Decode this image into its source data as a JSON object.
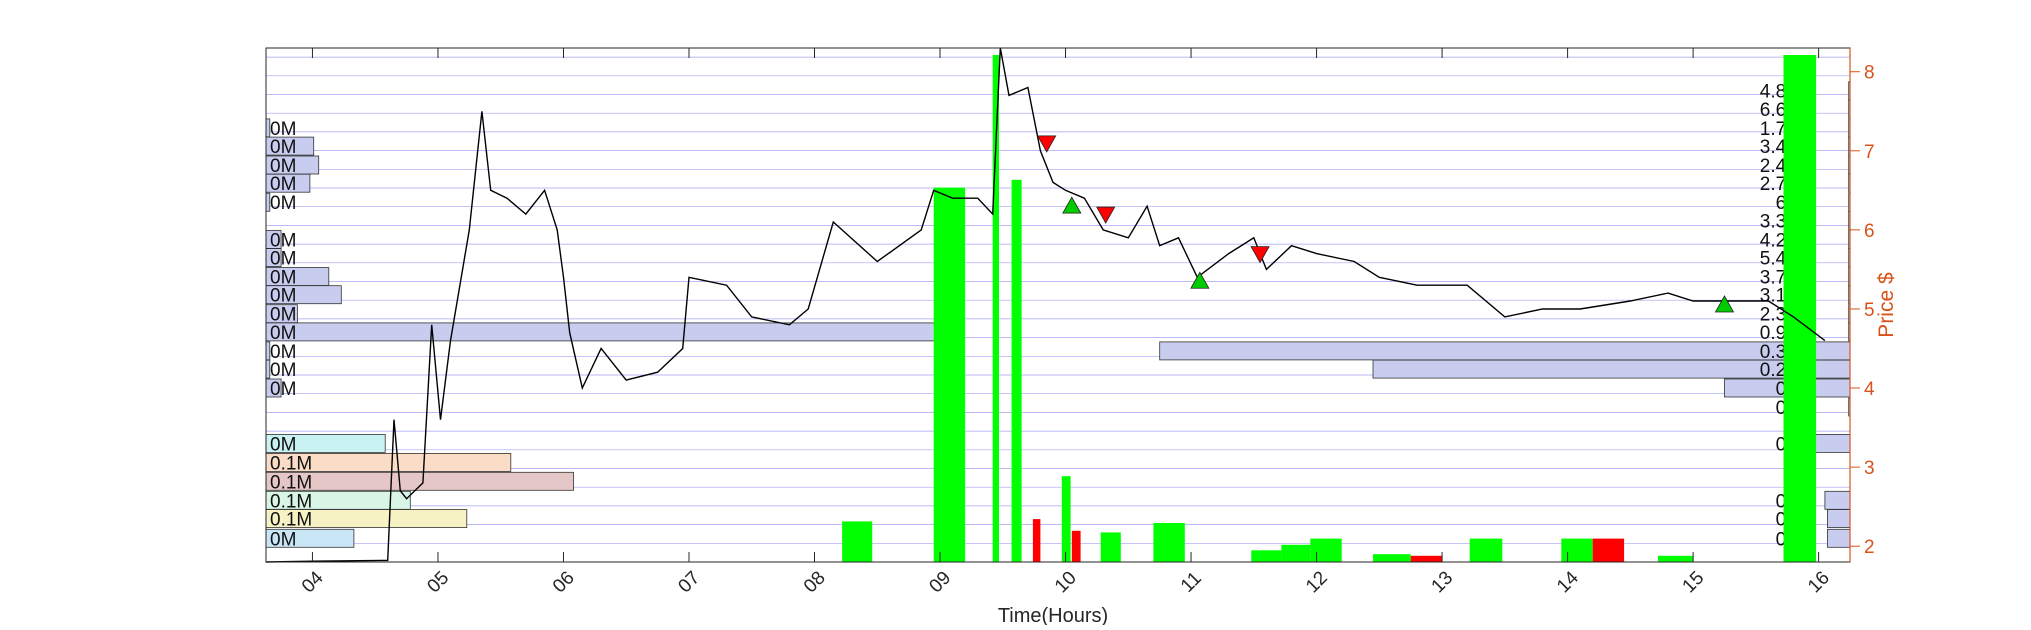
{
  "chart_data": {
    "type": "line",
    "xlabel": "Time(Hours)",
    "ylabel": "Price $",
    "x_ticks": [
      "04",
      "05",
      "06",
      "07",
      "08",
      "09",
      "10",
      "11",
      "12",
      "13",
      "14",
      "15",
      "16"
    ],
    "xlim": [
      3.63,
      16.25
    ],
    "y_ticks": [
      "2",
      "3",
      "4",
      "5",
      "6",
      "7",
      "8"
    ],
    "ylim": [
      1.8,
      8.3
    ],
    "grid": "horizontal",
    "colors": {
      "axis_right": "#d95319",
      "price_line": "#000000",
      "grid": "#8c8cf0",
      "volume_up": "#00ff00",
      "volume_down": "#ff0000",
      "buy_marker": "#00cc00",
      "sell_marker": "#ff0000",
      "profile_fill": "#c8cdf0"
    },
    "price_series": {
      "name": "Price",
      "points": [
        [
          3.63,
          1.8
        ],
        [
          4.0,
          1.81
        ],
        [
          4.6,
          1.82
        ],
        [
          4.65,
          3.6
        ],
        [
          4.7,
          2.7
        ],
        [
          4.75,
          2.6
        ],
        [
          4.88,
          2.8
        ],
        [
          4.95,
          4.8
        ],
        [
          5.02,
          3.6
        ],
        [
          5.1,
          4.6
        ],
        [
          5.25,
          6.0
        ],
        [
          5.35,
          7.5
        ],
        [
          5.42,
          6.5
        ],
        [
          5.55,
          6.4
        ],
        [
          5.7,
          6.2
        ],
        [
          5.85,
          6.5
        ],
        [
          5.95,
          6.0
        ],
        [
          6.0,
          5.4
        ],
        [
          6.05,
          4.7
        ],
        [
          6.15,
          4.0
        ],
        [
          6.3,
          4.5
        ],
        [
          6.5,
          4.1
        ],
        [
          6.75,
          4.2
        ],
        [
          6.95,
          4.5
        ],
        [
          7.0,
          5.4
        ],
        [
          7.3,
          5.3
        ],
        [
          7.5,
          4.9
        ],
        [
          7.8,
          4.8
        ],
        [
          7.95,
          5.0
        ],
        [
          8.15,
          6.1
        ],
        [
          8.5,
          5.6
        ],
        [
          8.85,
          6.0
        ],
        [
          8.95,
          6.5
        ],
        [
          9.1,
          6.4
        ],
        [
          9.3,
          6.4
        ],
        [
          9.42,
          6.2
        ],
        [
          9.48,
          8.3
        ],
        [
          9.55,
          7.7
        ],
        [
          9.7,
          7.8
        ],
        [
          9.8,
          7.0
        ],
        [
          9.9,
          6.6
        ],
        [
          10.0,
          6.5
        ],
        [
          10.15,
          6.4
        ],
        [
          10.3,
          6.0
        ],
        [
          10.5,
          5.9
        ],
        [
          10.65,
          6.3
        ],
        [
          10.75,
          5.8
        ],
        [
          10.9,
          5.9
        ],
        [
          11.05,
          5.4
        ],
        [
          11.3,
          5.7
        ],
        [
          11.5,
          5.9
        ],
        [
          11.6,
          5.5
        ],
        [
          11.8,
          5.8
        ],
        [
          12.0,
          5.7
        ],
        [
          12.3,
          5.6
        ],
        [
          12.5,
          5.4
        ],
        [
          12.8,
          5.3
        ],
        [
          13.2,
          5.3
        ],
        [
          13.5,
          4.9
        ],
        [
          13.8,
          5.0
        ],
        [
          14.1,
          5.0
        ],
        [
          14.5,
          5.1
        ],
        [
          14.8,
          5.2
        ],
        [
          15.0,
          5.1
        ],
        [
          15.3,
          5.1
        ],
        [
          15.6,
          5.1
        ],
        [
          15.8,
          4.9
        ],
        [
          16.05,
          4.6
        ]
      ]
    },
    "volume_bars": [
      {
        "x0": 8.22,
        "x1": 8.46,
        "h": 0.52,
        "color": "green"
      },
      {
        "x0": 8.95,
        "x1": 9.2,
        "h": 4.8,
        "color": "green"
      },
      {
        "x0": 9.42,
        "x1": 9.47,
        "h": 6.5,
        "color": "green"
      },
      {
        "x0": 9.57,
        "x1": 9.65,
        "h": 4.9,
        "color": "green"
      },
      {
        "x0": 9.74,
        "x1": 9.8,
        "h": 0.55,
        "color": "red"
      },
      {
        "x0": 9.97,
        "x1": 10.04,
        "h": 1.1,
        "color": "green"
      },
      {
        "x0": 10.05,
        "x1": 10.12,
        "h": 0.4,
        "color": "red"
      },
      {
        "x0": 10.28,
        "x1": 10.44,
        "h": 0.38,
        "color": "green"
      },
      {
        "x0": 10.7,
        "x1": 10.95,
        "h": 0.5,
        "color": "green"
      },
      {
        "x0": 11.48,
        "x1": 11.72,
        "h": 0.15,
        "color": "green"
      },
      {
        "x0": 11.72,
        "x1": 11.95,
        "h": 0.22,
        "color": "green"
      },
      {
        "x0": 11.95,
        "x1": 12.2,
        "h": 0.3,
        "color": "green"
      },
      {
        "x0": 12.45,
        "x1": 12.75,
        "h": 0.1,
        "color": "green"
      },
      {
        "x0": 12.75,
        "x1": 13.0,
        "h": 0.08,
        "color": "red"
      },
      {
        "x0": 13.22,
        "x1": 13.48,
        "h": 0.3,
        "color": "green"
      },
      {
        "x0": 13.95,
        "x1": 14.2,
        "h": 0.3,
        "color": "green"
      },
      {
        "x0": 14.2,
        "x1": 14.45,
        "h": 0.3,
        "color": "red"
      },
      {
        "x0": 14.72,
        "x1": 15.0,
        "h": 0.08,
        "color": "green"
      },
      {
        "x0": 15.72,
        "x1": 15.98,
        "h": 6.5,
        "color": "green"
      }
    ],
    "signals": [
      {
        "x": 9.85,
        "y": 7.1,
        "type": "sell"
      },
      {
        "x": 10.05,
        "y": 6.3,
        "type": "buy"
      },
      {
        "x": 10.32,
        "y": 6.2,
        "type": "sell"
      },
      {
        "x": 11.07,
        "y": 5.35,
        "type": "buy"
      },
      {
        "x": 11.55,
        "y": 5.7,
        "type": "sell"
      },
      {
        "x": 15.25,
        "y": 5.05,
        "type": "buy"
      }
    ],
    "left_profile": [
      {
        "label": "0M",
        "price": 2.1,
        "len": 0.7,
        "color": "#c9e6f7"
      },
      {
        "label": "0.1M",
        "price": 2.35,
        "len": 1.6,
        "color": "#f7f2c4"
      },
      {
        "label": "0.1M",
        "price": 2.58,
        "len": 1.15,
        "color": "#d8f5e6"
      },
      {
        "label": "0.1M",
        "price": 2.82,
        "len": 2.45,
        "color": "#e6c7c7"
      },
      {
        "label": "0.1M",
        "price": 3.06,
        "len": 1.95,
        "color": "#fadcc7"
      },
      {
        "label": "0M",
        "price": 3.3,
        "len": 0.95,
        "color": "#c9f2f2"
      },
      {
        "label": "0M",
        "price": 4.0,
        "len": 0.12,
        "color": "#c8cdf0"
      },
      {
        "label": "0M",
        "price": 4.24,
        "len": 0.03,
        "color": "#c8cdf0"
      },
      {
        "label": "0M",
        "price": 4.47,
        "len": 0.03,
        "color": "#c8cdf0"
      },
      {
        "label": "0M",
        "price": 4.71,
        "len": 5.4,
        "color": "#c8cdf0"
      },
      {
        "label": "0M",
        "price": 4.94,
        "len": 0.25,
        "color": "#c8cdf0"
      },
      {
        "label": "0M",
        "price": 5.18,
        "len": 0.6,
        "color": "#c8cdf0"
      },
      {
        "label": "0M",
        "price": 5.41,
        "len": 0.5,
        "color": "#c8cdf0"
      },
      {
        "label": "0M",
        "price": 5.65,
        "len": 0.12,
        "color": "#c8cdf0"
      },
      {
        "label": "0M",
        "price": 5.88,
        "len": 0.12,
        "color": "#c8cdf0"
      },
      {
        "label": "0M",
        "price": 6.35,
        "len": 0.03,
        "color": "#c8cdf0"
      },
      {
        "label": "0M",
        "price": 6.59,
        "len": 0.35,
        "color": "#c8cdf0"
      },
      {
        "label": "0M",
        "price": 6.82,
        "len": 0.42,
        "color": "#c8cdf0"
      },
      {
        "label": "0M",
        "price": 7.06,
        "len": 0.38,
        "color": "#c8cdf0"
      },
      {
        "label": "0M",
        "price": 7.29,
        "len": 0.03,
        "color": "#c8cdf0"
      }
    ],
    "right_profile": [
      {
        "label": "0M",
        "price": 2.1,
        "len": 0.18
      },
      {
        "label": "0M",
        "price": 2.35,
        "len": 0.18
      },
      {
        "label": "0M",
        "price": 2.58,
        "len": 0.2
      },
      {
        "label": "0M",
        "price": 3.3,
        "len": 0.3
      },
      {
        "label": "0M",
        "price": 3.76,
        "len": 0.01
      },
      {
        "label": "0M",
        "price": 4.0,
        "len": 1.0
      },
      {
        "label": "0.2M",
        "price": 4.24,
        "len": 3.8
      },
      {
        "label": "0.3M",
        "price": 4.47,
        "len": 5.5
      },
      {
        "label": "0.9M",
        "price": 4.71,
        "len": 0.01
      },
      {
        "label": "2.3M",
        "price": 4.94,
        "len": 0.01
      },
      {
        "label": "3.1M",
        "price": 5.18,
        "len": 0.01
      },
      {
        "label": "3.7M",
        "price": 5.41,
        "len": 0.01
      },
      {
        "label": "5.4M",
        "price": 5.65,
        "len": 0.01
      },
      {
        "label": "4.2M",
        "price": 5.88,
        "len": 0.01
      },
      {
        "label": "3.3M",
        "price": 6.12,
        "len": 0.01
      },
      {
        "label": "6M",
        "price": 6.35,
        "len": 0.01
      },
      {
        "label": "2.7M",
        "price": 6.59,
        "len": 0.01
      },
      {
        "label": "2.4M",
        "price": 6.82,
        "len": 0.01
      },
      {
        "label": "3.4M",
        "price": 7.06,
        "len": 0.01
      },
      {
        "label": "1.7M",
        "price": 7.29,
        "len": 0.01
      },
      {
        "label": "6.6M",
        "price": 7.53,
        "len": 0.01
      },
      {
        "label": "4.8M",
        "price": 7.76,
        "len": 0.01
      }
    ]
  }
}
